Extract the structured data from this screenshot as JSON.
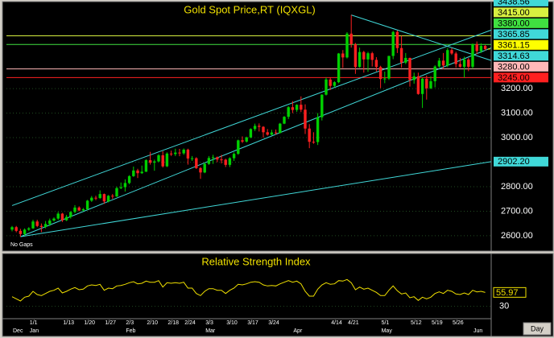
{
  "chart_data": [
    {
      "type": "candlestick",
      "title": "Gold Spot Price,RT  (IQXGL)",
      "note": "No Gaps",
      "x_axis_label": "Day",
      "categories": [
        "",
        null,
        null,
        null,
        "1/1",
        null,
        null,
        null,
        null,
        null,
        null,
        null,
        "1/13",
        null,
        null,
        null,
        null,
        "1/20",
        null,
        null,
        null,
        null,
        "1/27",
        null,
        null,
        null,
        null,
        "2/3",
        null,
        null,
        null,
        null,
        "2/10",
        null,
        null,
        null,
        null,
        "2/18",
        null,
        null,
        null,
        "2/24",
        null,
        null,
        null,
        null,
        "3/3",
        null,
        null,
        null,
        null,
        "3/10",
        null,
        null,
        null,
        null,
        "3/17",
        null,
        null,
        null,
        null,
        "3/24",
        null,
        null,
        null,
        null,
        null,
        null,
        null,
        null,
        null,
        null,
        null,
        null,
        null,
        null,
        "4/14",
        null,
        null,
        null,
        "4/21",
        null,
        null,
        null,
        null,
        null,
        null,
        null,
        "5/1",
        null,
        null,
        null,
        null,
        null,
        null,
        "5/12",
        null,
        null,
        null,
        null,
        "5/19",
        null,
        null,
        null,
        null,
        "5/26",
        null,
        null,
        null,
        null,
        null,
        null,
        null,
        null
      ],
      "months": [
        "Dec",
        null,
        null,
        null,
        "Jan",
        null,
        null,
        null,
        null,
        null,
        null,
        null,
        null,
        null,
        null,
        null,
        null,
        null,
        null,
        null,
        null,
        null,
        null,
        null,
        null,
        null,
        null,
        "Feb",
        null,
        null,
        null,
        null,
        null,
        null,
        null,
        null,
        null,
        null,
        null,
        null,
        null,
        null,
        null,
        null,
        null,
        null,
        "Mar",
        null,
        null,
        null,
        null,
        null,
        null,
        null,
        null,
        null,
        null,
        null,
        null,
        null,
        null,
        null,
        null,
        null,
        null,
        null,
        null,
        "Apr",
        null,
        null,
        null,
        null,
        null,
        null,
        null,
        null,
        null,
        null,
        null,
        null,
        null,
        null,
        null,
        null,
        null,
        null,
        null,
        null,
        "May",
        null,
        null,
        null,
        null,
        null,
        null,
        null,
        null,
        null,
        null,
        null,
        null,
        null,
        null,
        null,
        null,
        null,
        null,
        null,
        null,
        null,
        "Jun",
        null,
        null,
        null
      ],
      "open": [
        2625,
        2635,
        2620,
        2607,
        2625,
        2630,
        2658,
        2640,
        2636,
        2648,
        2662,
        2670,
        2690,
        2663,
        2677,
        2697,
        2715,
        2703,
        2708,
        2743,
        2755,
        2754,
        2770,
        2740,
        2763,
        2760,
        2794,
        2798,
        2815,
        2843,
        2866,
        2855,
        2861,
        2908,
        2898,
        2903,
        2928,
        2883,
        2935,
        2933,
        2939,
        2936,
        2951,
        2915,
        2916,
        2876,
        2858,
        2893,
        2917,
        2920,
        2911,
        2910,
        2889,
        2916,
        2934,
        2989,
        2984,
        3001,
        3035,
        3048,
        3044,
        3022,
        3012,
        3021,
        3019,
        3057,
        3085,
        3124,
        3113,
        3134,
        3114,
        3037,
        2983,
        2982,
        3083,
        3175,
        3237,
        3211,
        3226,
        3343,
        3327,
        3424,
        3381,
        3288,
        3349,
        3319,
        3344,
        3317,
        3288,
        3239,
        3241,
        3333,
        3431,
        3365,
        3306,
        3325,
        3235,
        3250,
        3178,
        3240,
        3201,
        3230,
        3290,
        3314,
        3294,
        3357,
        3343,
        3300,
        3289,
        3318,
        3289,
        3381,
        3353,
        3374
      ],
      "high": [
        2640,
        2640,
        2628,
        2630,
        2635,
        2665,
        2665,
        2650,
        2660,
        2670,
        2675,
        2697,
        2693,
        2685,
        2700,
        2725,
        2720,
        2713,
        2746,
        2762,
        2763,
        2785,
        2772,
        2766,
        2770,
        2800,
        2817,
        2830,
        2847,
        2882,
        2873,
        2886,
        2912,
        2942,
        2910,
        2933,
        2945,
        2940,
        2947,
        2955,
        2954,
        2956,
        2955,
        2925,
        2920,
        2880,
        2898,
        2925,
        2930,
        2923,
        2930,
        2914,
        2920,
        2940,
        2992,
        3005,
        3004,
        3038,
        3057,
        3058,
        3047,
        3035,
        3032,
        3033,
        3060,
        3088,
        3128,
        3149,
        3136,
        3168,
        3136,
        3055,
        3022,
        3100,
        3177,
        3245,
        3245,
        3230,
        3345,
        3357,
        3430,
        3500,
        3386,
        3367,
        3354,
        3350,
        3350,
        3328,
        3293,
        3269,
        3334,
        3435,
        3437,
        3415,
        3345,
        3326,
        3265,
        3265,
        3245,
        3253,
        3250,
        3295,
        3325,
        3345,
        3366,
        3365,
        3350,
        3325,
        3330,
        3325,
        3384,
        3392,
        3385,
        3378
      ],
      "low": [
        2618,
        2614,
        2596,
        2600,
        2620,
        2628,
        2635,
        2615,
        2630,
        2640,
        2658,
        2665,
        2656,
        2660,
        2670,
        2692,
        2700,
        2700,
        2705,
        2738,
        2745,
        2750,
        2730,
        2736,
        2750,
        2758,
        2790,
        2780,
        2810,
        2840,
        2835,
        2852,
        2860,
        2890,
        2865,
        2900,
        2878,
        2880,
        2925,
        2925,
        2924,
        2930,
        2890,
        2905,
        2872,
        2832,
        2855,
        2889,
        2893,
        2900,
        2895,
        2880,
        2880,
        2905,
        2930,
        2978,
        2980,
        2998,
        3027,
        3025,
        3000,
        3008,
        3010,
        3012,
        3017,
        3055,
        3076,
        3100,
        3105,
        3104,
        3015,
        2957,
        2975,
        2970,
        3070,
        3172,
        3194,
        3205,
        3222,
        3284,
        3323,
        3367,
        3260,
        3285,
        3265,
        3268,
        3290,
        3270,
        3202,
        3222,
        3235,
        3320,
        3345,
        3285,
        3300,
        3208,
        3220,
        3175,
        3121,
        3155,
        3198,
        3205,
        3285,
        3280,
        3287,
        3337,
        3285,
        3285,
        3245,
        3271,
        3280,
        3340,
        3345,
        3355
      ],
      "close": [
        2635,
        2620,
        2607,
        2625,
        2630,
        2658,
        2640,
        2636,
        2648,
        2662,
        2670,
        2690,
        2663,
        2677,
        2697,
        2715,
        2703,
        2708,
        2743,
        2755,
        2754,
        2770,
        2740,
        2763,
        2760,
        2794,
        2798,
        2815,
        2843,
        2866,
        2855,
        2861,
        2908,
        2898,
        2903,
        2928,
        2883,
        2935,
        2933,
        2939,
        2936,
        2951,
        2915,
        2916,
        2876,
        2858,
        2893,
        2917,
        2920,
        2911,
        2910,
        2889,
        2916,
        2934,
        2989,
        2984,
        3001,
        3035,
        3048,
        3044,
        3022,
        3012,
        3021,
        3019,
        3057,
        3085,
        3124,
        3113,
        3134,
        3114,
        3037,
        2983,
        2982,
        3083,
        3175,
        3237,
        3211,
        3226,
        3343,
        3327,
        3424,
        3381,
        3288,
        3349,
        3319,
        3344,
        3317,
        3288,
        3239,
        3241,
        3333,
        3431,
        3365,
        3306,
        3325,
        3235,
        3250,
        3178,
        3240,
        3201,
        3230,
        3290,
        3314,
        3294,
        3357,
        3343,
        3300,
        3289,
        3318,
        3289,
        3381,
        3353,
        3374,
        3361.15
      ],
      "up_color": "#00d000",
      "down_color": "#ff2020",
      "current_color": "#ffff00",
      "ylim": [
        2544,
        3548
      ],
      "yticks": [
        {
          "value": 2600,
          "label": "2600.00"
        },
        {
          "value": 2700,
          "label": "2700.00"
        },
        {
          "value": 2800,
          "label": "2800.00"
        },
        {
          "value": 2900,
          "label": "2900.00"
        },
        {
          "value": 3000,
          "label": "3000.00"
        },
        {
          "value": 3100,
          "label": "3100.00"
        },
        {
          "value": 3200,
          "label": "3200.00"
        }
      ],
      "grid": true,
      "hlines": [
        {
          "value": 3415,
          "label": "3415.00",
          "color": "#d8f040"
        },
        {
          "value": 3380,
          "label": "3380.00",
          "color": "#40e040"
        },
        {
          "value": 3280,
          "label": "3280.00",
          "color": "#ffb8b8"
        },
        {
          "value": 3245,
          "label": "3245.00",
          "color": "#ff2020"
        }
      ],
      "trendlines": [
        {
          "start_index": 0,
          "start": 2723,
          "end": {
            "value": 3438.56,
            "label": "3438.56"
          },
          "color": "#40d8d8"
        },
        {
          "start_index": 2,
          "start": 2596,
          "end": {
            "value": 3365.85,
            "label": "3365.85"
          },
          "color": "#40d8d8"
        },
        {
          "start_index": 81,
          "start": 3500,
          "end": {
            "value": 3314.63,
            "label": "3314.63"
          },
          "color": "#40d8d8"
        },
        {
          "start_index": 2,
          "start": 2596,
          "end": {
            "value": 2902.2,
            "label": "2902.20"
          },
          "color": "#40d8d8"
        }
      ]
    },
    {
      "type": "line",
      "title": "Relative Strength Index",
      "color": "#f0e000",
      "values": [
        48,
        44,
        40,
        47,
        49,
        58,
        52,
        50,
        54,
        58,
        60,
        64,
        55,
        58,
        62,
        65,
        61,
        62,
        68,
        70,
        69,
        71,
        60,
        64,
        63,
        68,
        69,
        71,
        74,
        76,
        72,
        73,
        77,
        75,
        75,
        78,
        66,
        74,
        73,
        74,
        73,
        75,
        64,
        64,
        54,
        50,
        58,
        63,
        63,
        60,
        60,
        54,
        60,
        64,
        71,
        70,
        72,
        75,
        76,
        75,
        70,
        68,
        69,
        68,
        72,
        75,
        78,
        75,
        77,
        72,
        58,
        49,
        49,
        62,
        70,
        74,
        71,
        72,
        78,
        77,
        80,
        74,
        61,
        66,
        62,
        64,
        60,
        56,
        50,
        50,
        60,
        68,
        59,
        53,
        55,
        46,
        48,
        41,
        47,
        44,
        47,
        54,
        57,
        54,
        60,
        58,
        53,
        52,
        55,
        52,
        60,
        57,
        58,
        55.97
      ],
      "ylim": [
        10,
        100
      ],
      "yticks": [
        30
      ]
    }
  ]
}
